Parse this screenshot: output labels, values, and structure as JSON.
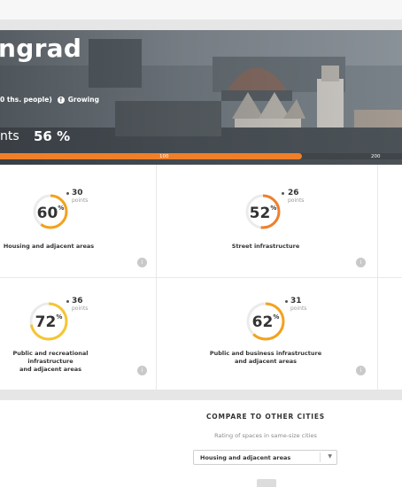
{
  "hero": {
    "city_name": "ngrad",
    "population": "0 ths. people)",
    "growth_label": "Growing",
    "points_label": "nts",
    "points_value": "56 %",
    "progress": {
      "fraction": 0.75,
      "tick_100": "100",
      "tick_200": "200"
    },
    "colors": {
      "accent": "#f07f2a"
    }
  },
  "cards": [
    {
      "percent": "60",
      "percent_sign": "%",
      "points": "30",
      "points_label": "points",
      "title_lines": [
        "Housing and adjacent areas"
      ],
      "ring_fraction": 0.6,
      "ring_color": "#f3a21d",
      "icon": "info-icon"
    },
    {
      "percent": "52",
      "percent_sign": "%",
      "points": "26",
      "points_label": "points",
      "title_lines": [
        "Street infrastructure"
      ],
      "ring_fraction": 0.52,
      "ring_color": "#f07f2a",
      "icon": "info-icon"
    },
    {
      "percent": "72",
      "percent_sign": "%",
      "points": "36",
      "points_label": "points",
      "title_lines": [
        "Public and recreational infrastructure",
        "and adjacent areas"
      ],
      "ring_fraction": 0.72,
      "ring_color": "#f6c531",
      "icon": "info-icon"
    },
    {
      "percent": "62",
      "percent_sign": "%",
      "points": "31",
      "points_label": "points",
      "title_lines": [
        "Public and business infrastructure",
        "and adjacent areas"
      ],
      "ring_fraction": 0.62,
      "ring_color": "#f3a21d",
      "icon": "info-icon"
    }
  ],
  "compare": {
    "title": "COMPARE TO OTHER CITIES",
    "subtitle": "Rating of spaces in same-size cities",
    "select_value": "Housing and adjacent areas"
  }
}
